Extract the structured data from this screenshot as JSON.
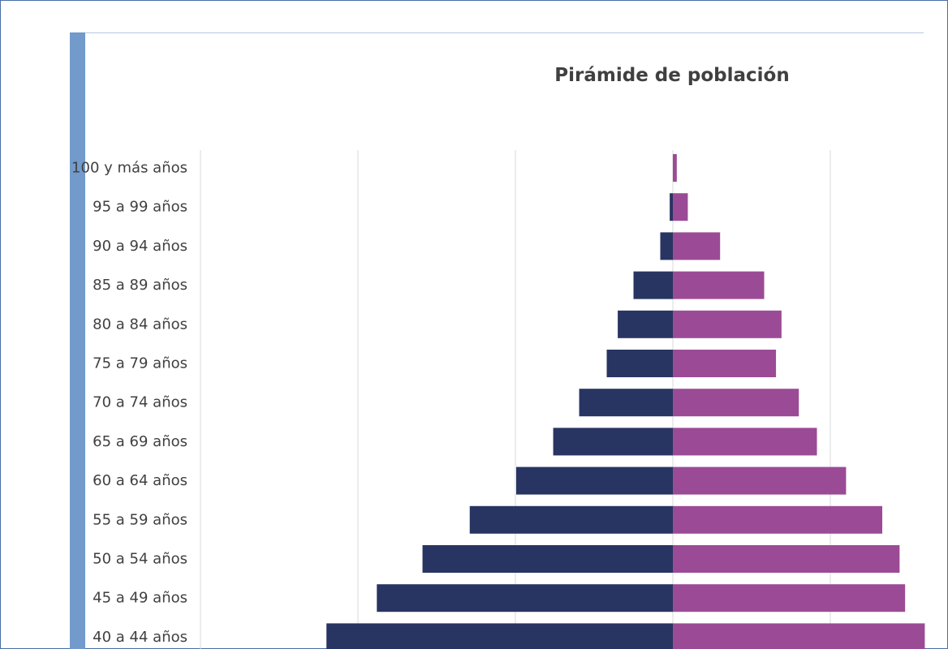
{
  "chart_data": {
    "type": "bar",
    "orientation": "horizontal",
    "title": "Pirámide de población",
    "categories": [
      "100 y más años",
      "95 a 99 años",
      "90 a 94 años",
      "85 a 89 años",
      "80 a 84 años",
      "75 a 79 años",
      "70 a 74 años",
      "65 a 69 años",
      "60 a 64 años",
      "55 a 59 años",
      "50 a 54 años",
      "45 a 49 años",
      "40 a 44 años"
    ],
    "series": [
      {
        "values": [
          0,
          -0.2,
          -0.8,
          -2.5,
          -3.5,
          -4.2,
          -5.95,
          -7.6,
          -9.95,
          -12.9,
          -15.9,
          -18.8,
          -22.0
        ]
      },
      {
        "values": [
          0.25,
          0.95,
          3.0,
          5.8,
          6.9,
          6.55,
          8.0,
          9.15,
          11.0,
          13.3,
          14.4,
          14.75,
          16.0
        ]
      }
    ],
    "xlim": [
      -30,
      16
    ],
    "gridlines_x": [
      -30,
      -20,
      -10,
      0,
      10
    ],
    "grid": true,
    "colors": {
      "series_left": "#283562",
      "series_right": "#9b4b95",
      "grid": "#d9d9d9",
      "accent": "#729acb",
      "frame": "#4a6fa5"
    }
  }
}
